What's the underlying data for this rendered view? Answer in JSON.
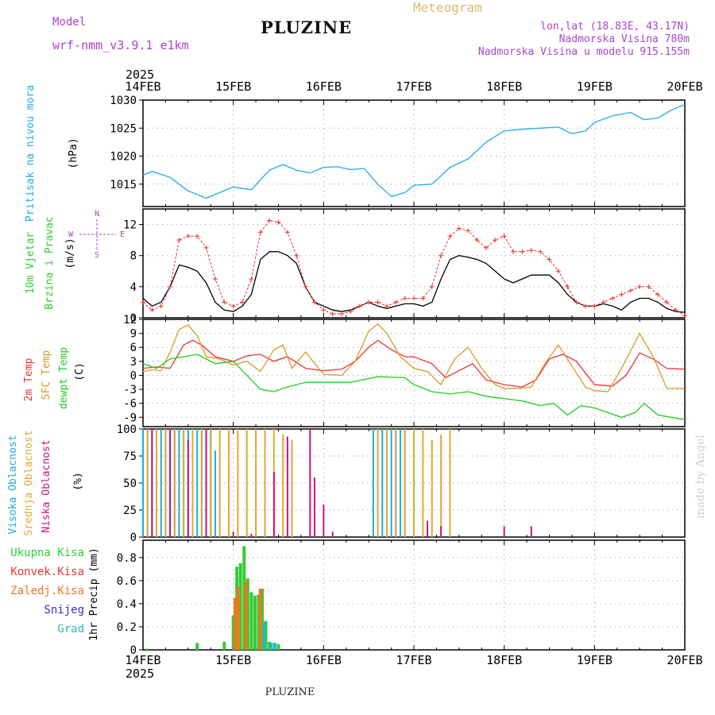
{
  "header": {
    "model_label": "Model",
    "model_name": "wrf-nmm_v3.9.1 e1km",
    "location": "PLUZINE",
    "product": "Meteogram",
    "coords": "lon,lat (18.83E, 43.17N)",
    "elevation": "Nadmorska Visina 780m",
    "model_elevation": "Nadmorska Visina u modelu 915.155m",
    "credit": "made by Angel",
    "footer_location": "PLUZINE"
  },
  "colors": {
    "pressure": "#22aaee",
    "temp2m": "#ee3333",
    "sfc": "#dd9922",
    "dewpt": "#22cc22",
    "wind_speed": "#000000",
    "gust": "#ee3333",
    "high_cloud": "#22aadd",
    "mid_cloud": "#ddaa33",
    "low_cloud": "#cc1188",
    "precip_total": "#33cc33",
    "precip_conv": "#ee3333",
    "precip_frz": "#ee7722",
    "snow": "#3333cc",
    "hail": "#22bbbb",
    "header_purple": "#aa44cc",
    "header_orange": "#e0b870"
  },
  "chart_data": [
    {
      "panel": "pressure",
      "type": "line",
      "year": "2025",
      "date_ticks": [
        "14FEB",
        "15FEB",
        "16FEB",
        "17FEB",
        "18FEB",
        "19FEB",
        "20FEB"
      ],
      "ylabel_lines": [
        "Pritisak na nivou mora",
        "(hPa)"
      ],
      "ylim": [
        1011,
        1030
      ],
      "yticks": [
        "1015",
        "1020",
        "1025",
        "1030"
      ],
      "series": [
        {
          "key": "pressure",
          "x": [
            0,
            0.1,
            0.3,
            0.5,
            0.7,
            0.85,
            1.0,
            1.2,
            1.4,
            1.55,
            1.7,
            1.85,
            2.0,
            2.15,
            2.3,
            2.45,
            2.6,
            2.75,
            2.9,
            3.0,
            3.2,
            3.4,
            3.6,
            3.8,
            4.0,
            4.2,
            4.4,
            4.6,
            4.75,
            4.9,
            5.0,
            5.2,
            5.4,
            5.55,
            5.7,
            5.85,
            6.0
          ],
          "values": [
            1016.6,
            1017.3,
            1016.2,
            1013.8,
            1012.5,
            1013.5,
            1014.5,
            1014.0,
            1017.5,
            1018.5,
            1017.5,
            1017.0,
            1018.0,
            1018.1,
            1017.6,
            1017.8,
            1015.0,
            1012.8,
            1013.5,
            1014.8,
            1015.0,
            1018.0,
            1019.5,
            1022.5,
            1024.5,
            1024.8,
            1025.0,
            1025.2,
            1024.0,
            1024.5,
            1026.0,
            1027.2,
            1027.8,
            1026.5,
            1026.8,
            1028.2,
            1029.2
          ]
        }
      ]
    },
    {
      "panel": "wind",
      "type": "line",
      "ylabel_lines": [
        "10m Vjetar",
        "Brzina i Pravac",
        "(m/s)"
      ],
      "compass": [
        "N",
        "W",
        "E",
        "S"
      ],
      "ylim": [
        0,
        14
      ],
      "yticks": [
        "0",
        "4",
        "8",
        "12"
      ],
      "series": [
        {
          "key": "wind_speed",
          "x": [
            0,
            0.1,
            0.2,
            0.3,
            0.4,
            0.5,
            0.6,
            0.7,
            0.8,
            0.9,
            1.0,
            1.1,
            1.2,
            1.3,
            1.4,
            1.5,
            1.6,
            1.7,
            1.8,
            1.9,
            2.0,
            2.1,
            2.2,
            2.3,
            2.4,
            2.5,
            2.6,
            2.7,
            2.8,
            2.9,
            3.0,
            3.1,
            3.2,
            3.3,
            3.4,
            3.5,
            3.6,
            3.7,
            3.8,
            3.9,
            4.0,
            4.1,
            4.2,
            4.3,
            4.4,
            4.5,
            4.6,
            4.7,
            4.8,
            4.9,
            5.0,
            5.1,
            5.2,
            5.3,
            5.4,
            5.5,
            5.6,
            5.7,
            5.8,
            5.9,
            6.0
          ],
          "values": [
            2.5,
            1.5,
            2,
            4,
            6.8,
            6.5,
            6,
            4.5,
            2,
            1,
            0.8,
            1.5,
            3,
            7.5,
            8.5,
            8.5,
            8,
            7,
            4,
            2,
            1.5,
            1,
            0.8,
            1,
            1.5,
            2,
            1.5,
            1.2,
            1.5,
            1.8,
            1.8,
            1.5,
            2,
            5,
            7.5,
            8,
            7.8,
            7.5,
            7,
            6,
            5,
            4.5,
            5,
            5.5,
            5.5,
            5.5,
            4.5,
            3,
            2,
            1.5,
            1.5,
            1.8,
            1.5,
            1,
            2,
            2.5,
            2.5,
            2,
            1.2,
            0.8,
            0.7
          ]
        },
        {
          "key": "gust",
          "x": [
            0,
            0.1,
            0.2,
            0.3,
            0.4,
            0.5,
            0.6,
            0.7,
            0.8,
            0.9,
            1.0,
            1.1,
            1.2,
            1.3,
            1.4,
            1.5,
            1.6,
            1.7,
            1.8,
            1.9,
            2.0,
            2.1,
            2.2,
            2.3,
            2.4,
            2.5,
            2.6,
            2.7,
            2.8,
            2.9,
            3.0,
            3.1,
            3.2,
            3.3,
            3.4,
            3.5,
            3.6,
            3.7,
            3.8,
            3.9,
            4.0,
            4.1,
            4.2,
            4.3,
            4.4,
            4.5,
            4.6,
            4.7,
            4.8,
            4.9,
            5.0,
            5.1,
            5.2,
            5.3,
            5.4,
            5.5,
            5.6,
            5.7,
            5.8,
            5.9,
            6.0
          ],
          "values": [
            2,
            1,
            1.5,
            4,
            10,
            10.5,
            10.5,
            9,
            5,
            2,
            1.5,
            2,
            5,
            11,
            12.5,
            12.3,
            11,
            8,
            4,
            2,
            1,
            0.5,
            0.5,
            0.8,
            1.5,
            2,
            2,
            1.5,
            2,
            2.5,
            2.5,
            2.5,
            4,
            8,
            10.5,
            11.5,
            11.2,
            10,
            9,
            10,
            10.5,
            8.5,
            8.5,
            8.7,
            8.5,
            7.5,
            6,
            4,
            2,
            1.5,
            1.5,
            2,
            2.5,
            3,
            3.5,
            4,
            4,
            3,
            2,
            1,
            0.3
          ]
        }
      ]
    },
    {
      "panel": "temperature",
      "type": "line",
      "ylabel_lines": [
        "2m Temp",
        "SFC Temp",
        "dewpt Temp",
        "(C)"
      ],
      "ylim": [
        -11,
        12
      ],
      "yticks": [
        "-9",
        "-6",
        "-3",
        "0",
        "3",
        "6",
        "9",
        "12"
      ],
      "series": [
        {
          "key": "temp2m",
          "x": [
            0,
            0.15,
            0.3,
            0.45,
            0.55,
            0.65,
            0.8,
            1.0,
            1.15,
            1.3,
            1.45,
            1.6,
            1.8,
            2.0,
            2.2,
            2.35,
            2.5,
            2.6,
            2.75,
            2.9,
            3.0,
            3.2,
            3.35,
            3.5,
            3.65,
            3.8,
            4.0,
            4.2,
            4.35,
            4.5,
            4.65,
            4.8,
            5.0,
            5.2,
            5.35,
            5.5,
            5.65,
            5.8,
            6.0
          ],
          "values": [
            1.5,
            1.8,
            1.5,
            6.5,
            7.5,
            6.5,
            4,
            3,
            4.2,
            4.5,
            3,
            4,
            1.5,
            1,
            1.3,
            3,
            6,
            7.5,
            5.5,
            4,
            4,
            2.5,
            -0.5,
            1,
            2.5,
            -1,
            -2,
            -2.5,
            -1,
            3.5,
            4.5,
            3,
            -2,
            -2.3,
            0,
            4.8,
            3.5,
            1.5,
            1.3
          ]
        },
        {
          "key": "sfc",
          "x": [
            0,
            0.1,
            0.2,
            0.3,
            0.4,
            0.5,
            0.6,
            0.7,
            0.85,
            1.0,
            1.15,
            1.3,
            1.45,
            1.55,
            1.65,
            1.8,
            2.0,
            2.2,
            2.35,
            2.5,
            2.6,
            2.7,
            2.85,
            3.0,
            3.15,
            3.3,
            3.45,
            3.6,
            3.75,
            3.9,
            4.0,
            4.15,
            4.3,
            4.45,
            4.6,
            4.75,
            4.9,
            5.0,
            5.15,
            5.3,
            5.5,
            5.65,
            5.8,
            6.0
          ],
          "values": [
            0.8,
            1.2,
            1.0,
            5.0,
            9.8,
            10.8,
            8.5,
            4.0,
            3.5,
            2.2,
            3.0,
            0.8,
            5.5,
            6.5,
            1.5,
            5.0,
            0.2,
            0.0,
            3.0,
            9.5,
            11.0,
            9.0,
            4.0,
            1.5,
            0.8,
            -2.0,
            3.5,
            6.0,
            1.5,
            -2.0,
            -2.8,
            -2.8,
            -2.5,
            2.5,
            6.5,
            2.0,
            -2.5,
            -3.3,
            -3.5,
            1.5,
            9.0,
            4.0,
            -2.8,
            -2.8
          ]
        },
        {
          "key": "dewpt",
          "x": [
            0,
            0.15,
            0.3,
            0.45,
            0.6,
            0.8,
            1.0,
            1.15,
            1.3,
            1.45,
            1.6,
            1.8,
            2.0,
            2.3,
            2.6,
            2.9,
            3.0,
            3.2,
            3.4,
            3.6,
            3.8,
            4.0,
            4.2,
            4.4,
            4.55,
            4.7,
            4.85,
            5.0,
            5.15,
            5.3,
            5.45,
            5.55,
            5.7,
            5.85,
            6.0
          ],
          "values": [
            2.5,
            1.5,
            3.5,
            4,
            4.5,
            2.5,
            3,
            0,
            -3,
            -3.5,
            -2.5,
            -1.5,
            -1.5,
            -1.5,
            -0.3,
            -0.5,
            -2,
            -3.5,
            -4,
            -3.5,
            -4.5,
            -5,
            -5.5,
            -6.5,
            -6,
            -8.5,
            -6.5,
            -7,
            -8,
            -9,
            -8,
            -6,
            -8.5,
            -9,
            -9.5
          ]
        }
      ]
    },
    {
      "panel": "cloud",
      "type": "bar",
      "ylabel_lines": [
        "Visoka Oblacnost",
        "Srednja Oblacnost",
        "Niska Oblacnost",
        "(%)"
      ],
      "ylim": [
        0,
        100
      ],
      "yticks": [
        "0",
        "25",
        "50",
        "75",
        "100"
      ],
      "series": [
        {
          "key": "high_cloud",
          "x": [
            0.0,
            0.05,
            0.1,
            0.15,
            0.2,
            0.25,
            0.3,
            0.35,
            0.4,
            0.45,
            0.5,
            0.55,
            0.6,
            0.65,
            0.7,
            0.75,
            0.8,
            0.9,
            1.0,
            1.1,
            1.2,
            1.3,
            2.55,
            2.6,
            2.65,
            2.7,
            2.75,
            2.8,
            2.85,
            2.9
          ],
          "values": [
            100,
            100,
            100,
            100,
            100,
            100,
            100,
            100,
            100,
            100,
            100,
            95,
            100,
            100,
            100,
            100,
            80,
            0,
            0,
            0,
            0,
            0,
            100,
            100,
            100,
            100,
            100,
            100,
            100,
            100
          ]
        },
        {
          "key": "mid_cloud",
          "x": [
            0.05,
            0.15,
            0.25,
            0.35,
            0.45,
            0.55,
            0.65,
            0.75,
            0.85,
            0.95,
            1.05,
            1.15,
            1.25,
            1.35,
            1.45,
            1.55,
            1.65,
            2.6,
            2.7,
            2.8,
            2.9,
            3.0,
            3.1,
            3.2,
            3.3,
            3.4
          ],
          "values": [
            100,
            100,
            100,
            100,
            100,
            100,
            100,
            100,
            100,
            100,
            100,
            100,
            100,
            100,
            100,
            95,
            90,
            100,
            100,
            100,
            100,
            100,
            100,
            90,
            95,
            100
          ]
        },
        {
          "key": "low_cloud",
          "x": [
            0.1,
            0.3,
            0.5,
            0.7,
            1.0,
            1.2,
            1.45,
            1.6,
            1.85,
            1.9,
            2.0,
            2.1,
            3.15,
            3.3,
            4.0,
            4.3
          ],
          "values": [
            100,
            100,
            90,
            100,
            5,
            3,
            60,
            93,
            100,
            55,
            30,
            5,
            15,
            10,
            10,
            10
          ]
        }
      ]
    },
    {
      "panel": "precip",
      "type": "bar",
      "ylabel_lines": [
        "1hr Precip (mm)"
      ],
      "legend": [
        "Ukupna Kisa",
        "Konvek.Kisa",
        "Zaledj.Kisa",
        "Snijeg",
        "Grad"
      ],
      "ylim": [
        0,
        0.95
      ],
      "yticks": [
        "0",
        "0.2",
        "0.4",
        "0.6",
        "0.8"
      ],
      "series": [
        {
          "key": "precip_total",
          "x": [
            0.05,
            0.6,
            0.9,
            1.0,
            1.04,
            1.08,
            1.12,
            1.16,
            1.2,
            1.24,
            1.28,
            1.32,
            1.36,
            1.4,
            1.5
          ],
          "values": [
            0.01,
            0.06,
            0.07,
            0.3,
            0.72,
            0.75,
            0.9,
            0.62,
            0.5,
            0.47,
            0.48,
            0.53,
            0.25,
            0.07,
            0.05
          ]
        },
        {
          "key": "precip_frz",
          "x": [
            1.02,
            1.06,
            1.14,
            1.3
          ],
          "values": [
            0.45,
            0.55,
            0.6,
            0.53
          ]
        },
        {
          "key": "hail",
          "x": [
            1.34,
            1.42,
            1.46
          ],
          "values": [
            0.24,
            0.06,
            0.06
          ]
        }
      ]
    }
  ]
}
